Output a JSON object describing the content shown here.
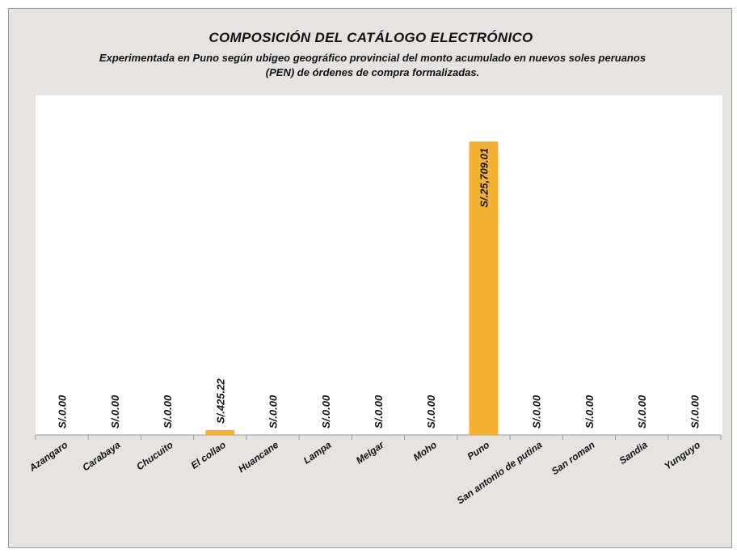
{
  "title": "COMPOSICIÓN DEL CATÁLOGO  ELECTRÓNICO",
  "subtitle": "Experimentada en Puno según ubigeo geográfico provincial del monto acumulado en nuevos soles peruanos (PEN) de órdenes de compra formalizadas.",
  "colors": {
    "bar": "#f5b132",
    "background": "#e7e3e1",
    "plot": "#ffffff"
  },
  "chart_data": {
    "type": "bar",
    "categories": [
      "Azangaro",
      "Carabaya",
      "Chucuito",
      "El collao",
      "Huancane",
      "Lampa",
      "Melgar",
      "Moho",
      "Puno",
      "San antonio de putina",
      "San roman",
      "Sandia",
      "Yunguyo"
    ],
    "values": [
      0,
      0,
      0,
      425.22,
      0,
      0,
      0,
      0,
      25709.01,
      0,
      0,
      0,
      0
    ],
    "data_labels": [
      "S/.0.00",
      "S/.0.00",
      "S/.0.00",
      "S/.425.22",
      "S/.0.00",
      "S/.0.00",
      "S/.0.00",
      "S/.0.00",
      "S/.25,709.01",
      "S/.0.00",
      "S/.0.00",
      "S/.0.00",
      "S/.0.00"
    ],
    "xlabel": "",
    "ylabel": "",
    "y_axis_visible": false,
    "grid": false,
    "legend": "none"
  }
}
